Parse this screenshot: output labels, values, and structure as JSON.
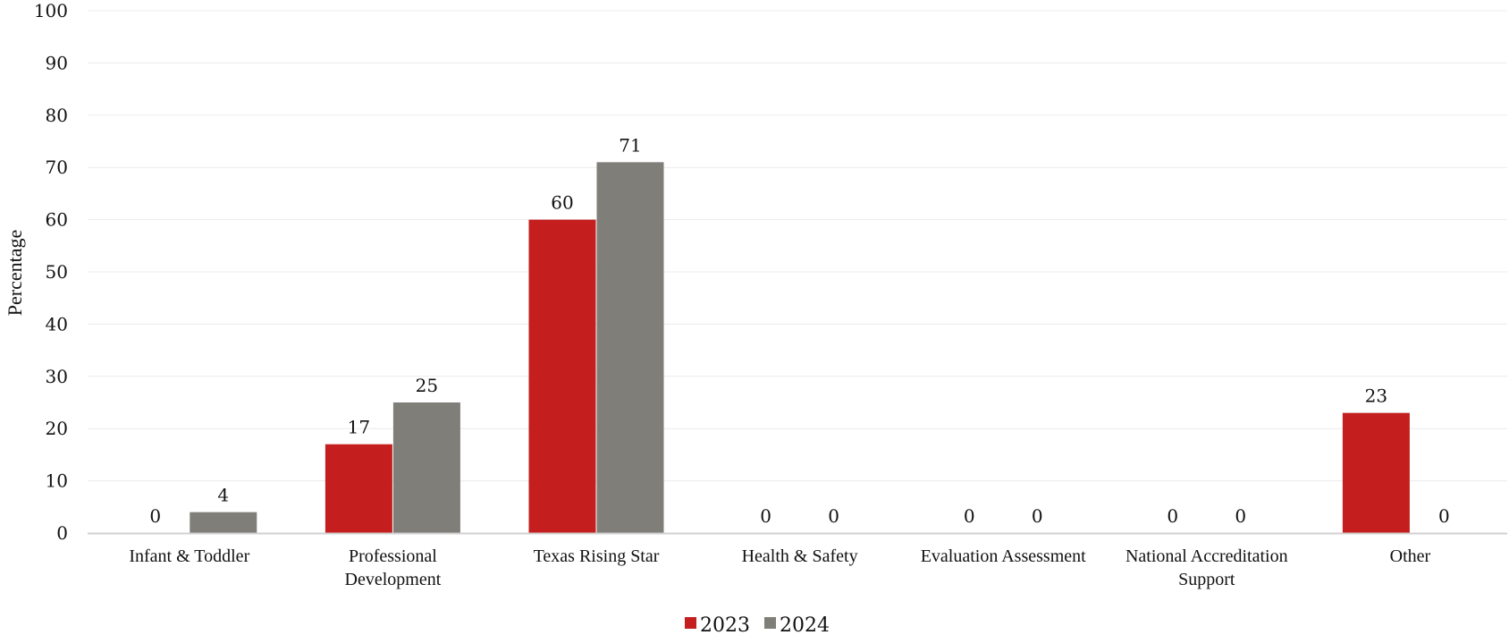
{
  "chart_data": {
    "type": "bar",
    "ylabel": "Percentage",
    "xlabel": "",
    "ylim": [
      0,
      100
    ],
    "yticks": [
      0,
      10,
      20,
      30,
      40,
      50,
      60,
      70,
      80,
      90,
      100
    ],
    "grid": true,
    "legend_position": "bottom",
    "categories": [
      [
        "Infant & Toddler"
      ],
      [
        "Professional",
        "Development"
      ],
      [
        "Texas Rising Star"
      ],
      [
        "Health & Safety"
      ],
      [
        "Evaluation Assessment"
      ],
      [
        "National Accreditation",
        "Support"
      ],
      [
        "Other"
      ]
    ],
    "series": [
      {
        "name": "2023",
        "color": "#c41e1e",
        "values": [
          0,
          17,
          60,
          0,
          0,
          0,
          23
        ]
      },
      {
        "name": "2024",
        "color": "#7f7e79",
        "values": [
          4,
          25,
          71,
          0,
          0,
          0,
          0
        ]
      }
    ]
  }
}
